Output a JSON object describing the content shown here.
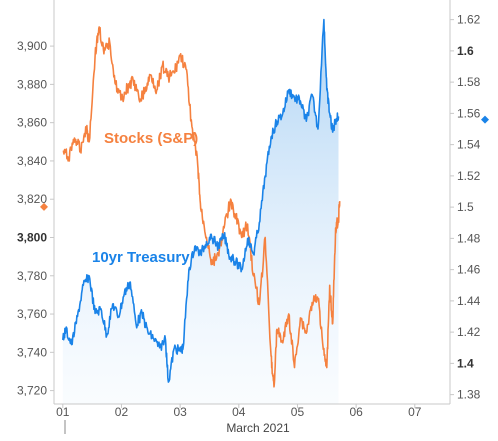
{
  "chart_data": {
    "type": "line",
    "title": "",
    "xlabel": "March 2021",
    "x_ticks": [
      "01",
      "02",
      "03",
      "04",
      "05",
      "06",
      "07"
    ],
    "x_range": [
      0.85,
      7.6
    ],
    "left_axis": {
      "ticks": [
        "3,720",
        "3,740",
        "3,760",
        "3,780",
        "3,800",
        "3,820",
        "3,840",
        "3,860",
        "3,880",
        "3,900"
      ],
      "range": [
        3713,
        3922
      ],
      "bold_tick": "3,800"
    },
    "right_axis": {
      "ticks": [
        "1.38",
        "1.4",
        "1.42",
        "1.44",
        "1.46",
        "1.48",
        "1.5",
        "1.52",
        "1.54",
        "1.56",
        "1.58",
        "1.6",
        "1.62"
      ],
      "range": [
        1.374,
        1.63
      ],
      "bold_ticks": [
        "1.4",
        "1.6"
      ]
    },
    "grid": false,
    "series": [
      {
        "name": "Stocks (S&P)",
        "axis": "left",
        "color": "#f5813f",
        "x": [
          1.0,
          1.1,
          1.2,
          1.3,
          1.4,
          1.45,
          1.55,
          1.62,
          1.7,
          1.8,
          1.9,
          2.0,
          2.1,
          2.2,
          2.3,
          2.4,
          2.5,
          2.6,
          2.7,
          2.8,
          2.9,
          3.0,
          3.1,
          3.2,
          3.3,
          3.35,
          3.45,
          3.55,
          3.65,
          3.75,
          3.85,
          3.95,
          4.05,
          4.15,
          4.25,
          4.35,
          4.45,
          4.55,
          4.6,
          4.65,
          4.75,
          4.85,
          4.95,
          5.05,
          5.15,
          5.25,
          5.35,
          5.45,
          5.5,
          5.55,
          5.6,
          5.65,
          5.7,
          5.72
        ],
        "values": [
          3845,
          3842,
          3852,
          3846,
          3858,
          3850,
          3895,
          3910,
          3896,
          3902,
          3880,
          3872,
          3878,
          3882,
          3872,
          3876,
          3885,
          3877,
          3890,
          3884,
          3886,
          3895,
          3888,
          3858,
          3838,
          3815,
          3800,
          3786,
          3792,
          3805,
          3818,
          3812,
          3800,
          3807,
          3780,
          3765,
          3800,
          3738,
          3722,
          3752,
          3745,
          3760,
          3732,
          3758,
          3750,
          3766,
          3768,
          3742,
          3732,
          3775,
          3755,
          3805,
          3810,
          3819
        ]
      },
      {
        "name": "10yr Treasury",
        "axis": "right",
        "color": "#1a83e8",
        "x": [
          1.0,
          1.05,
          1.15,
          1.25,
          1.35,
          1.45,
          1.55,
          1.65,
          1.75,
          1.85,
          1.95,
          2.05,
          2.15,
          2.25,
          2.35,
          2.45,
          2.55,
          2.65,
          2.75,
          2.8,
          2.9,
          3.0,
          3.05,
          3.15,
          3.25,
          3.35,
          3.45,
          3.55,
          3.65,
          3.75,
          3.85,
          3.95,
          4.05,
          4.15,
          4.25,
          4.35,
          4.45,
          4.55,
          4.65,
          4.75,
          4.85,
          4.95,
          5.05,
          5.15,
          5.25,
          5.35,
          5.45,
          5.5,
          5.55,
          5.6,
          5.65,
          5.7
        ],
        "values": [
          1.415,
          1.422,
          1.412,
          1.43,
          1.45,
          1.456,
          1.432,
          1.435,
          1.418,
          1.438,
          1.43,
          1.445,
          1.452,
          1.425,
          1.432,
          1.42,
          1.416,
          1.41,
          1.415,
          1.388,
          1.41,
          1.408,
          1.41,
          1.46,
          1.475,
          1.47,
          1.478,
          1.48,
          1.475,
          1.482,
          1.468,
          1.465,
          1.46,
          1.48,
          1.47,
          1.49,
          1.52,
          1.545,
          1.555,
          1.56,
          1.575,
          1.57,
          1.568,
          1.555,
          1.572,
          1.55,
          1.62,
          1.575,
          1.56,
          1.548,
          1.556,
          1.558
        ]
      }
    ],
    "annotations": [
      {
        "text": "Stocks (S&P)",
        "color": "#f5813f"
      },
      {
        "text": "10yr Treasury",
        "color": "#1a83e8"
      }
    ],
    "left_marker_value": 3816,
    "right_marker_value": 1.556
  }
}
